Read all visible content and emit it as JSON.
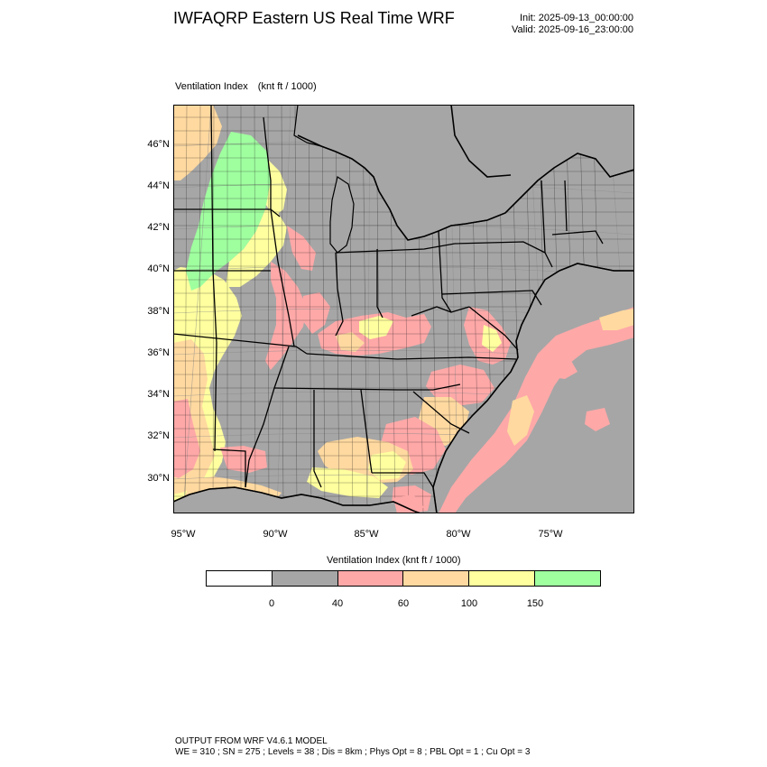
{
  "header": {
    "title": "IWFAQRP Eastern US Real Time WRF",
    "init": "Init: 2025-09-13_00:00:00",
    "valid": "Valid: 2025-09-16_23:00:00"
  },
  "field": {
    "name": "Ventilation Index",
    "units": "(knt ft / 1000)"
  },
  "map": {
    "projection": "lambert-conformal",
    "lat_range_deg_N": [
      28.3,
      47.8
    ],
    "lon_range_deg_W": [
      95.5,
      70.5
    ],
    "lon_labels": [
      "95°W",
      "90°W",
      "85°W",
      "80°W",
      "75°W"
    ],
    "lat_labels": [
      "46°N",
      "44°N",
      "42°N",
      "40°N",
      "38°N",
      "36°N",
      "34°N",
      "32°N",
      "30°N"
    ],
    "colors": {
      "land_low": "#a6a6a6",
      "water": "#a6a6a6",
      "class_40_60": "#ffa8a8",
      "class_60_100": "#ffd9a0",
      "class_100_150": "#ffff9f",
      "class_150_plus": "#9fff9f",
      "boundaries": "#000000"
    }
  },
  "colorbar": {
    "title": "Ventilation Index  (knt ft / 1000)",
    "colors": [
      "#ffffff",
      "#a6a6a6",
      "#ffa8a8",
      "#ffd9a0",
      "#ffff9f",
      "#9fff9f"
    ],
    "labels": [
      "0",
      "40",
      "60",
      "100",
      "150"
    ]
  },
  "footer": {
    "line1": "OUTPUT FROM WRF V4.6.1 MODEL",
    "line2": "WE = 310 ; SN = 275 ; Levels = 38 ; Dis = 8km ; Phys Opt = 8 ; PBL Opt = 1 ; Cu Opt = 3"
  }
}
